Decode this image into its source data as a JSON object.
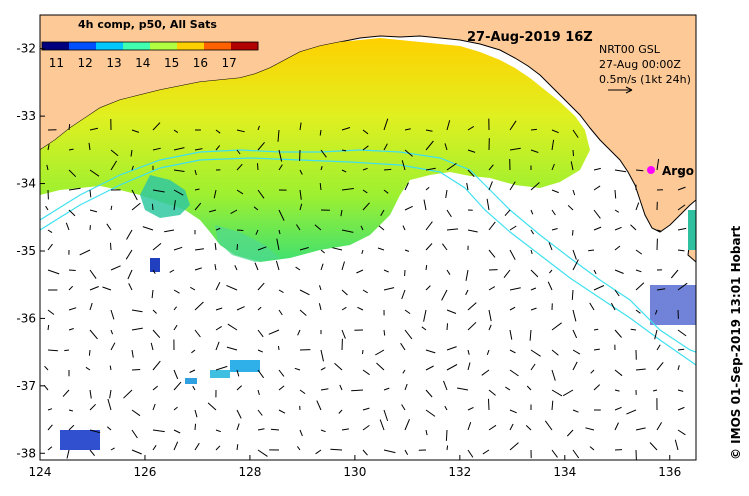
{
  "colorbar": {
    "title": "4h comp, p50, All Sats",
    "tick_labels": [
      "11",
      "12",
      "13",
      "14",
      "15",
      "16",
      "17"
    ],
    "range": [
      10.5,
      18.0
    ],
    "colors": [
      "#00007f",
      "#0050ff",
      "#00c8ff",
      "#40ffb0",
      "#b0ff40",
      "#ffd000",
      "#ff6000",
      "#b00000"
    ]
  },
  "date_title": "27-Aug-2019 16Z",
  "current_info": {
    "line1": "NRT00 GSL",
    "line2": "27-Aug 00:00Z",
    "line3": "0.5m/s (1kt 24h)"
  },
  "argo_label": "Argo",
  "credit": "© IMOS 01-Sep-2019 13:01 Hobart",
  "axes": {
    "lon_ticks": [
      "124",
      "126",
      "128",
      "130",
      "132",
      "134",
      "136"
    ],
    "lat_ticks": [
      "-32",
      "-33",
      "-34",
      "-35",
      "-36",
      "-37",
      "-38"
    ],
    "lon_range": [
      124,
      136.5
    ],
    "lat_range": [
      -38.1,
      -31.5
    ]
  },
  "colors": {
    "land": "#fdc997",
    "ocean": "#ffffff",
    "argo": "#ff00ff",
    "bathymetry": "#40e0f0"
  }
}
